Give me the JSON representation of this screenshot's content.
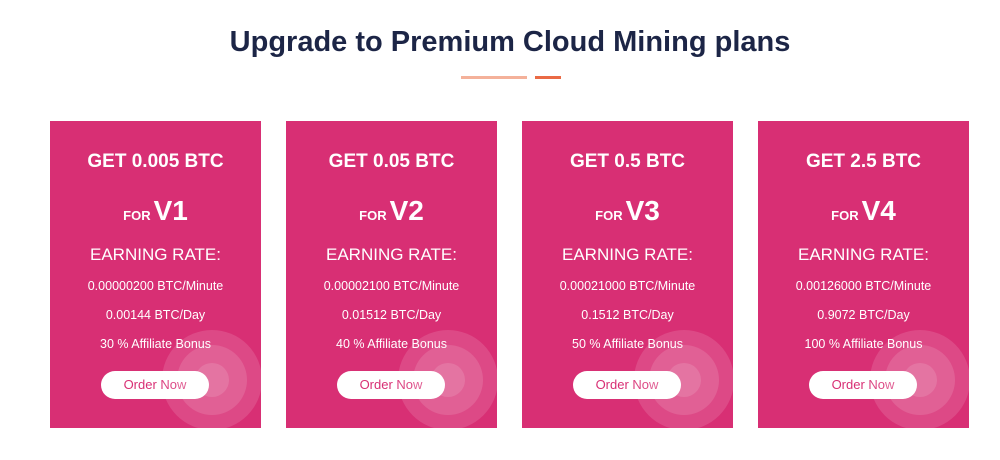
{
  "header": {
    "title": "Upgrade to Premium Cloud Mining plans"
  },
  "colors": {
    "card": "#d82f74",
    "title": "#1c2546",
    "accent": "#ea6a45"
  },
  "plans": [
    {
      "get": "GET 0.005 BTC",
      "for": "FOR",
      "version": "V1",
      "rate_label": "EARNING RATE:",
      "per_minute": "0.00000200 BTC/Minute",
      "per_day": "0.00144 BTC/Day",
      "bonus": "30 % Affiliate Bonus",
      "button": "Order Now"
    },
    {
      "get": "GET 0.05 BTC",
      "for": "FOR",
      "version": "V2",
      "rate_label": "EARNING RATE:",
      "per_minute": "0.00002100 BTC/Minute",
      "per_day": "0.01512 BTC/Day",
      "bonus": "40 % Affiliate Bonus",
      "button": "Order Now"
    },
    {
      "get": "GET 0.5 BTC",
      "for": "FOR",
      "version": "V3",
      "rate_label": "EARNING RATE:",
      "per_minute": "0.00021000 BTC/Minute",
      "per_day": "0.1512 BTC/Day",
      "bonus": "50 % Affiliate Bonus",
      "button": "Order Now"
    },
    {
      "get": "GET 2.5 BTC",
      "for": "FOR",
      "version": "V4",
      "rate_label": "EARNING RATE:",
      "per_minute": "0.00126000 BTC/Minute",
      "per_day": "0.9072 BTC/Day",
      "bonus": "100 % Affiliate Bonus",
      "button": "Order Now"
    }
  ]
}
